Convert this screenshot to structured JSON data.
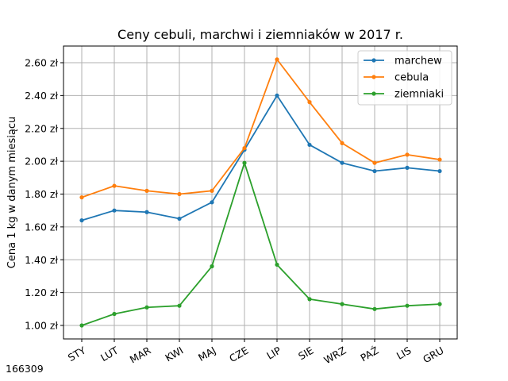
{
  "chart_data": {
    "type": "line",
    "title": "Ceny cebuli, marchwi i ziemniaków w 2017 r.",
    "xlabel": "",
    "ylabel": "Cena 1 kg w danym miesiącu",
    "categories": [
      "STY",
      "LUT",
      "MAR",
      "KWI",
      "MAJ",
      "CZE",
      "LIP",
      "SIE",
      "WRZ",
      "PAŹ",
      "LIS",
      "GRU"
    ],
    "ylim": [
      0.93,
      2.7
    ],
    "yticks": [
      1.0,
      1.2,
      1.4,
      1.6,
      1.8,
      2.0,
      2.2,
      2.4,
      2.6
    ],
    "ytick_labels": [
      "1.00 zł",
      "1.20 zł",
      "1.40 zł",
      "1.60 zł",
      "1.80 zł",
      "2.00 zł",
      "2.20 zł",
      "2.40 zł",
      "2.60 zł"
    ],
    "grid": true,
    "legend_position": "top-right",
    "series": [
      {
        "name": "marchew",
        "color": "#1f77b4",
        "values": [
          1.64,
          1.7,
          1.69,
          1.65,
          1.75,
          2.07,
          2.4,
          2.1,
          1.99,
          1.94,
          1.96,
          1.94
        ]
      },
      {
        "name": "cebula",
        "color": "#ff7f0e",
        "values": [
          1.78,
          1.85,
          1.82,
          1.8,
          1.82,
          2.08,
          2.62,
          2.36,
          2.11,
          1.99,
          2.04,
          2.01
        ]
      },
      {
        "name": "ziemniaki",
        "color": "#2ca02c",
        "values": [
          1.0,
          1.07,
          1.11,
          1.12,
          1.36,
          1.99,
          1.37,
          1.16,
          1.13,
          1.1,
          1.12,
          1.13
        ]
      }
    ]
  },
  "footer": {
    "id": "166309"
  }
}
